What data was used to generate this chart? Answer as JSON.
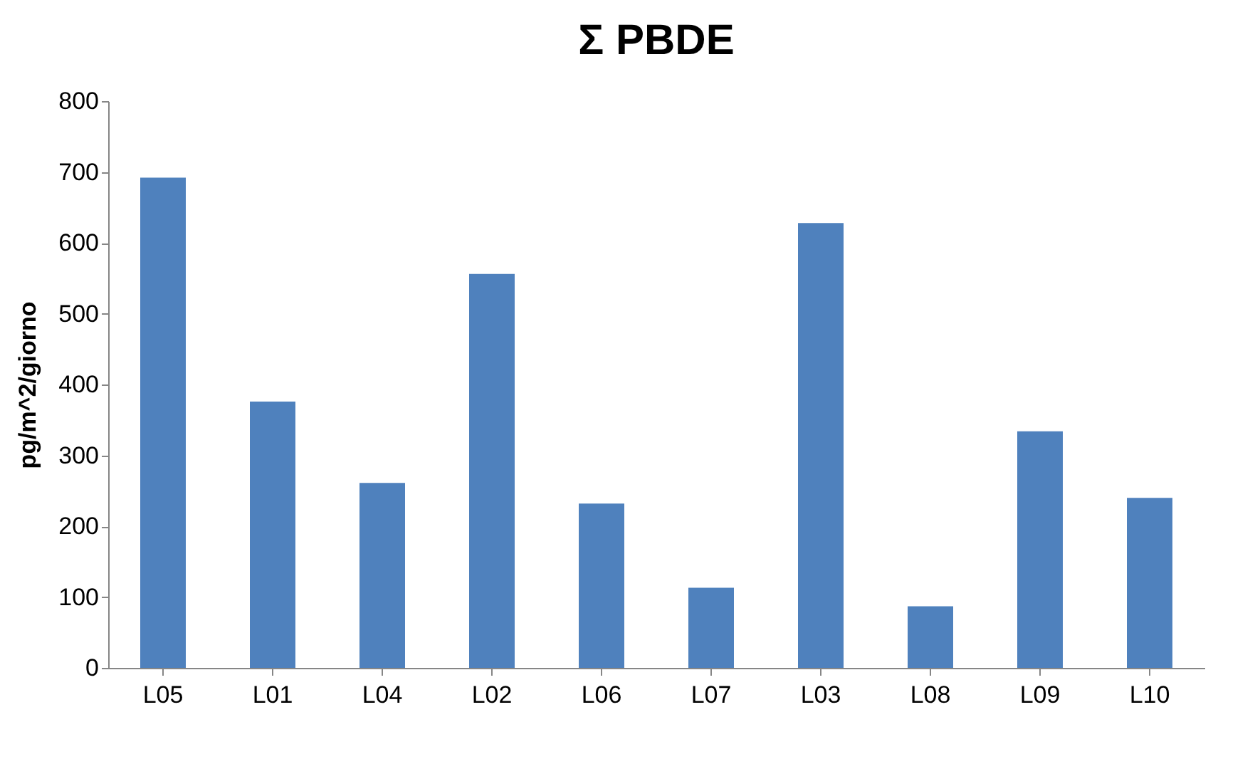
{
  "chart_data": {
    "type": "bar",
    "title": "Σ PBDE",
    "ylabel": "pg/m^2/giorno",
    "categories": [
      "L05",
      "L01",
      "L04",
      "L02",
      "L06",
      "L07",
      "L03",
      "L08",
      "L09",
      "L10"
    ],
    "values": [
      692,
      376,
      261,
      556,
      232,
      113,
      628,
      87,
      334,
      240
    ],
    "color": "#4f81bd",
    "ylim": [
      0,
      800
    ],
    "yticks": [
      0,
      100,
      200,
      300,
      400,
      500,
      600,
      700,
      800
    ],
    "grid": false
  }
}
